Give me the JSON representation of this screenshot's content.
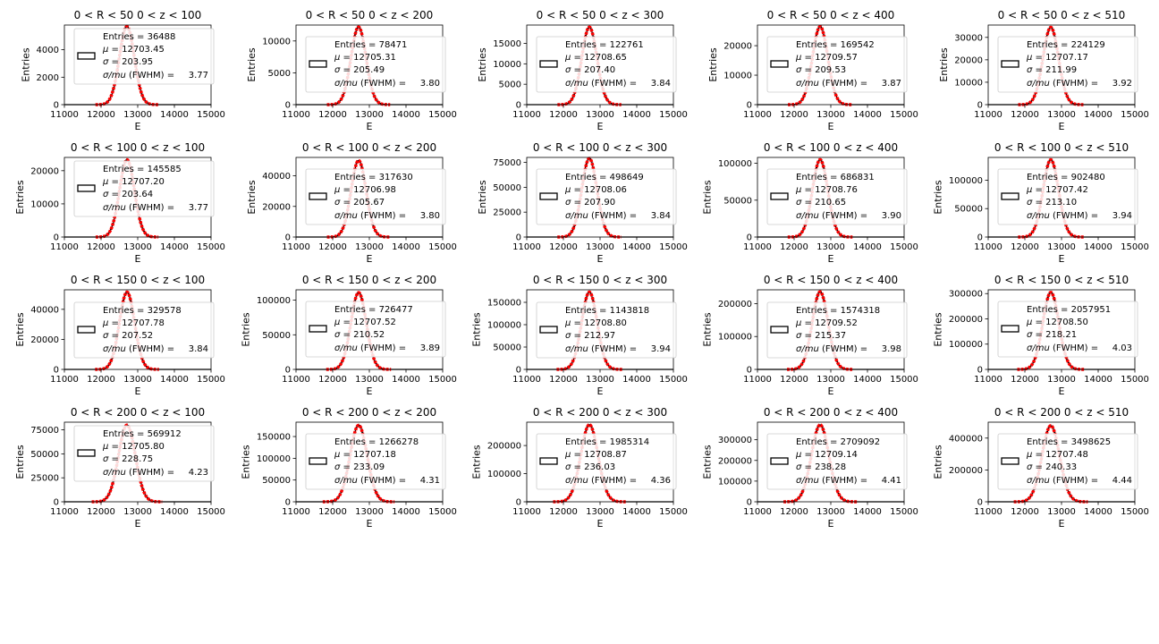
{
  "figure": {
    "x_label": "E",
    "y_label": "Entries",
    "x_ticks": [
      11000,
      12000,
      13000,
      14000,
      15000
    ],
    "histogram_color": "#000000",
    "fit_color": "#ff0000",
    "legend_labels": {
      "entries": "Entries =",
      "mu": "μ =",
      "sigma": "σ =",
      "fwhm_prefix": "σ/mu",
      "fwhm_suffix": " (FWHM)  ="
    }
  },
  "chart_data": [
    {
      "type": "histogram",
      "title": "0 < R < 50 0 < z < 100",
      "entries": "36488",
      "mean": "12703.45",
      "sigma": "203.95",
      "fwhm": "3.77",
      "xlim": [
        11000,
        15000
      ],
      "ylim": [
        0,
        5800
      ],
      "yticks": [
        0,
        2000,
        4000
      ],
      "peak": 5700,
      "fit_mean": 12703.45,
      "fit_sigma": 203.95,
      "xlabel": "E",
      "ylabel": "Entries"
    },
    {
      "type": "histogram",
      "title": "0 < R < 50 0 < z < 200",
      "entries": "78471",
      "mean": "12705.31",
      "sigma": "205.49",
      "fwhm": "3.80",
      "xlim": [
        11000,
        15000
      ],
      "ylim": [
        0,
        12500
      ],
      "yticks": [
        0,
        5000,
        10000
      ],
      "peak": 12200,
      "fit_mean": 12705.31,
      "fit_sigma": 205.49,
      "xlabel": "E",
      "ylabel": "Entries"
    },
    {
      "type": "histogram",
      "title": "0 < R < 50 0 < z < 300",
      "entries": "122761",
      "mean": "12708.65",
      "sigma": "207.40",
      "fwhm": "3.84",
      "xlim": [
        11000,
        15000
      ],
      "ylim": [
        0,
        19500
      ],
      "yticks": [
        0,
        5000,
        10000,
        15000
      ],
      "peak": 19000,
      "fit_mean": 12708.65,
      "fit_sigma": 207.4,
      "xlabel": "E",
      "ylabel": "Entries"
    },
    {
      "type": "histogram",
      "title": "0 < R < 50 0 < z < 400",
      "entries": "169542",
      "mean": "12709.57",
      "sigma": "209.53",
      "fwhm": "3.87",
      "xlim": [
        11000,
        15000
      ],
      "ylim": [
        0,
        27000
      ],
      "yticks": [
        0,
        10000,
        20000
      ],
      "peak": 26500,
      "fit_mean": 12709.57,
      "fit_sigma": 209.53,
      "xlabel": "E",
      "ylabel": "Entries"
    },
    {
      "type": "histogram",
      "title": "0 < R < 50 0 < z < 510",
      "entries": "224129",
      "mean": "12707.17",
      "sigma": "211.99",
      "fwhm": "3.92",
      "xlim": [
        11000,
        15000
      ],
      "ylim": [
        0,
        35500
      ],
      "yticks": [
        0,
        10000,
        20000,
        30000
      ],
      "peak": 34500,
      "fit_mean": 12707.17,
      "fit_sigma": 211.99,
      "xlabel": "E",
      "ylabel": "Entries"
    },
    {
      "type": "histogram",
      "title": "0 < R < 100 0 < z < 100",
      "entries": "145585",
      "mean": "12707.20",
      "sigma": "203.64",
      "fwhm": "3.77",
      "xlim": [
        11000,
        15000
      ],
      "ylim": [
        0,
        24000
      ],
      "yticks": [
        0,
        10000,
        20000
      ],
      "peak": 23300,
      "fit_mean": 12707.2,
      "fit_sigma": 203.64,
      "xlabel": "E",
      "ylabel": "Entries"
    },
    {
      "type": "histogram",
      "title": "0 < R < 100 0 < z < 200",
      "entries": "317630",
      "mean": "12706.98",
      "sigma": "205.67",
      "fwhm": "3.80",
      "xlim": [
        11000,
        15000
      ],
      "ylim": [
        0,
        52000
      ],
      "yticks": [
        0,
        20000,
        40000
      ],
      "peak": 50000,
      "fit_mean": 12706.98,
      "fit_sigma": 205.67,
      "xlabel": "E",
      "ylabel": "Entries"
    },
    {
      "type": "histogram",
      "title": "0 < R < 100 0 < z < 300",
      "entries": "498649",
      "mean": "12708.06",
      "sigma": "207.90",
      "fwhm": "3.84",
      "xlim": [
        11000,
        15000
      ],
      "ylim": [
        0,
        80000
      ],
      "yticks": [
        0,
        25000,
        50000,
        75000
      ],
      "peak": 79000,
      "fit_mean": 12708.06,
      "fit_sigma": 207.9,
      "xlabel": "E",
      "ylabel": "Entries"
    },
    {
      "type": "histogram",
      "title": "0 < R < 100 0 < z < 400",
      "entries": "686831",
      "mean": "12708.76",
      "sigma": "210.65",
      "fwhm": "3.90",
      "xlim": [
        11000,
        15000
      ],
      "ylim": [
        0,
        108000
      ],
      "yticks": [
        0,
        50000,
        100000
      ],
      "peak": 105000,
      "fit_mean": 12708.76,
      "fit_sigma": 210.65,
      "xlabel": "E",
      "ylabel": "Entries"
    },
    {
      "type": "histogram",
      "title": "0 < R < 100 0 < z < 510",
      "entries": "902480",
      "mean": "12707.42",
      "sigma": "213.10",
      "fwhm": "3.94",
      "xlim": [
        11000,
        15000
      ],
      "ylim": [
        0,
        140000
      ],
      "yticks": [
        0,
        50000,
        100000
      ],
      "peak": 136000,
      "fit_mean": 12707.42,
      "fit_sigma": 213.1,
      "xlabel": "E",
      "ylabel": "Entries"
    },
    {
      "type": "histogram",
      "title": "0 < R < 150 0 < z < 100",
      "entries": "329578",
      "mean": "12707.78",
      "sigma": "207.52",
      "fwhm": "3.84",
      "xlim": [
        11000,
        15000
      ],
      "ylim": [
        0,
        53000
      ],
      "yticks": [
        0,
        20000,
        40000
      ],
      "peak": 51500,
      "fit_mean": 12707.78,
      "fit_sigma": 207.52,
      "xlabel": "E",
      "ylabel": "Entries"
    },
    {
      "type": "histogram",
      "title": "0 < R < 150 0 < z < 200",
      "entries": "726477",
      "mean": "12707.52",
      "sigma": "210.52",
      "fwhm": "3.89",
      "xlim": [
        11000,
        15000
      ],
      "ylim": [
        0,
        115000
      ],
      "yticks": [
        0,
        50000,
        100000
      ],
      "peak": 111000,
      "fit_mean": 12707.52,
      "fit_sigma": 210.52,
      "xlabel": "E",
      "ylabel": "Entries"
    },
    {
      "type": "histogram",
      "title": "0 < R < 150 0 < z < 300",
      "entries": "1143818",
      "mean": "12708.80",
      "sigma": "212.97",
      "fwhm": "3.94",
      "xlim": [
        11000,
        15000
      ],
      "ylim": [
        0,
        178000
      ],
      "yticks": [
        0,
        50000,
        100000,
        150000
      ],
      "peak": 173000,
      "fit_mean": 12708.8,
      "fit_sigma": 212.97,
      "xlabel": "E",
      "ylabel": "Entries"
    },
    {
      "type": "histogram",
      "title": "0 < R < 150 0 < z < 400",
      "entries": "1574318",
      "mean": "12709.52",
      "sigma": "215.37",
      "fwhm": "3.98",
      "xlim": [
        11000,
        15000
      ],
      "ylim": [
        0,
        242000
      ],
      "yticks": [
        0,
        100000,
        200000
      ],
      "peak": 236000,
      "fit_mean": 12709.52,
      "fit_sigma": 215.37,
      "xlabel": "E",
      "ylabel": "Entries"
    },
    {
      "type": "histogram",
      "title": "0 < R < 150 0 < z < 510",
      "entries": "2057951",
      "mean": "12708.50",
      "sigma": "218.21",
      "fwhm": "4.03",
      "xlim": [
        11000,
        15000
      ],
      "ylim": [
        0,
        315000
      ],
      "yticks": [
        0,
        100000,
        200000,
        300000
      ],
      "peak": 305000,
      "fit_mean": 12708.5,
      "fit_sigma": 218.21,
      "xlabel": "E",
      "ylabel": "Entries"
    },
    {
      "type": "histogram",
      "title": "0 < R < 200 0 < z < 100",
      "entries": "569912",
      "mean": "12705.80",
      "sigma": "228.75",
      "fwhm": "4.23",
      "xlim": [
        11000,
        15000
      ],
      "ylim": [
        0,
        83000
      ],
      "yticks": [
        0,
        25000,
        50000,
        75000
      ],
      "peak": 80000,
      "fit_mean": 12705.8,
      "fit_sigma": 228.75,
      "xlabel": "E",
      "ylabel": "Entries"
    },
    {
      "type": "histogram",
      "title": "0 < R < 200 0 < z < 200",
      "entries": "1266278",
      "mean": "12707.18",
      "sigma": "233.09",
      "fwhm": "4.31",
      "xlim": [
        11000,
        15000
      ],
      "ylim": [
        0,
        183000
      ],
      "yticks": [
        0,
        50000,
        100000,
        150000
      ],
      "peak": 176000,
      "fit_mean": 12707.18,
      "fit_sigma": 233.09,
      "xlabel": "E",
      "ylabel": "Entries"
    },
    {
      "type": "histogram",
      "title": "0 < R < 200 0 < z < 300",
      "entries": "1985314",
      "mean": "12708.87",
      "sigma": "236.03",
      "fwhm": "4.36",
      "xlim": [
        11000,
        15000
      ],
      "ylim": [
        0,
        283000
      ],
      "yticks": [
        0,
        100000,
        200000
      ],
      "peak": 274000,
      "fit_mean": 12708.87,
      "fit_sigma": 236.03,
      "xlabel": "E",
      "ylabel": "Entries"
    },
    {
      "type": "histogram",
      "title": "0 < R < 200 0 < z < 400",
      "entries": "2709092",
      "mean": "12709.14",
      "sigma": "238.28",
      "fwhm": "4.41",
      "xlim": [
        11000,
        15000
      ],
      "ylim": [
        0,
        385000
      ],
      "yticks": [
        0,
        100000,
        200000,
        300000
      ],
      "peak": 372000,
      "fit_mean": 12709.14,
      "fit_sigma": 238.28,
      "xlabel": "E",
      "ylabel": "Entries"
    },
    {
      "type": "histogram",
      "title": "0 < R < 200 0 < z < 510",
      "entries": "3498625",
      "mean": "12707.48",
      "sigma": "240.33",
      "fwhm": "4.44",
      "xlim": [
        11000,
        15000
      ],
      "ylim": [
        0,
        500000
      ],
      "yticks": [
        0,
        200000,
        400000
      ],
      "peak": 478000,
      "fit_mean": 12707.48,
      "fit_sigma": 240.33,
      "xlabel": "E",
      "ylabel": "Entries"
    }
  ]
}
